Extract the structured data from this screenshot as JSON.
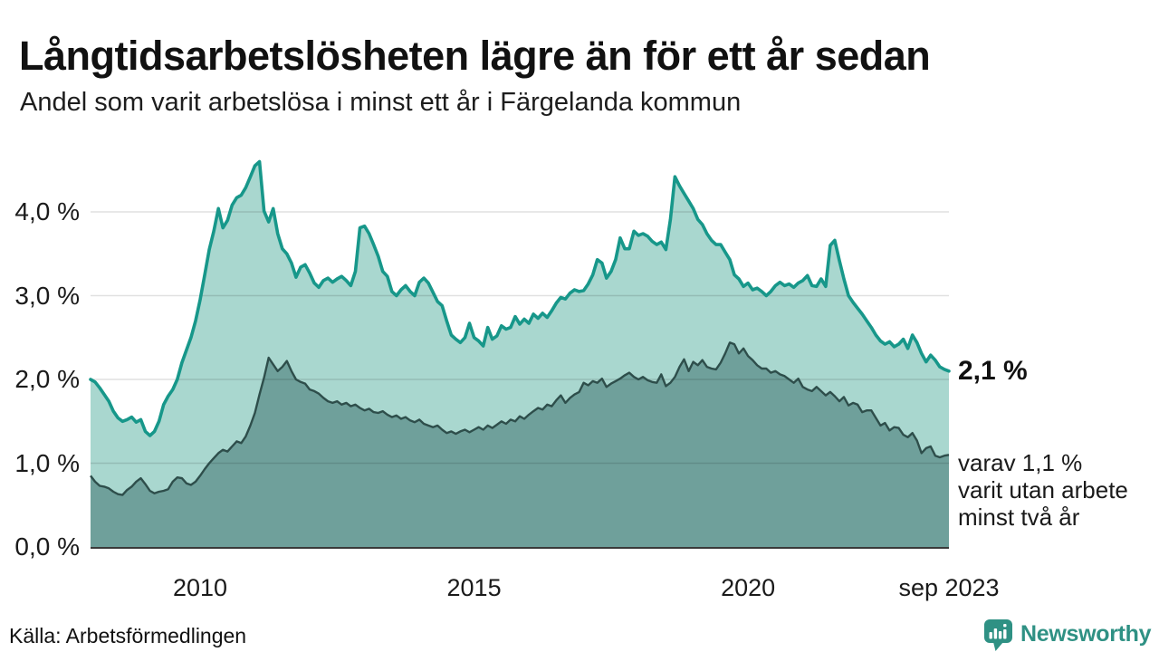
{
  "chart_data": {
    "type": "area",
    "title": "Långtidsarbetslösheten lägre än för ett år sedan",
    "subtitle": "Andel som varit arbetslösa i minst ett år i Färgelanda kommun",
    "unit": "%",
    "frequency": "monthly",
    "x_start_month": "2008-01",
    "x_end_month": "2023-09",
    "grid": "horizontal",
    "legend_position": "none",
    "ylim": [
      0,
      4.8
    ],
    "y_ticks": [
      {
        "label": "0,0 %",
        "value": 0
      },
      {
        "label": "1,0 %",
        "value": 1
      },
      {
        "label": "2,0 %",
        "value": 2
      },
      {
        "label": "3,0 %",
        "value": 3
      },
      {
        "label": "4,0 %",
        "value": 4
      }
    ],
    "x_ticks": [
      {
        "label": "2010",
        "month_index": 24
      },
      {
        "label": "2015",
        "month_index": 84
      },
      {
        "label": "2020",
        "month_index": 144
      },
      {
        "label": "sep 2023",
        "month_index": 188
      }
    ],
    "series": [
      {
        "name": "Andel arbetslösa minst ett år",
        "line_color": "#17978a",
        "fill_color": "#a9d7cf",
        "values": [
          2.0,
          1.97,
          1.9,
          1.82,
          1.74,
          1.62,
          1.54,
          1.5,
          1.52,
          1.55,
          1.49,
          1.52,
          1.38,
          1.33,
          1.38,
          1.5,
          1.7,
          1.8,
          1.88,
          2.0,
          2.2,
          2.35,
          2.5,
          2.7,
          2.95,
          3.25,
          3.55,
          3.77,
          4.04,
          3.81,
          3.9,
          4.08,
          4.17,
          4.2,
          4.29,
          4.42,
          4.55,
          4.6,
          4.01,
          3.88,
          4.04,
          3.74,
          3.56,
          3.5,
          3.39,
          3.22,
          3.34,
          3.37,
          3.27,
          3.15,
          3.1,
          3.18,
          3.21,
          3.16,
          3.2,
          3.23,
          3.18,
          3.12,
          3.29,
          3.81,
          3.83,
          3.74,
          3.61,
          3.47,
          3.29,
          3.23,
          3.05,
          3.0,
          3.07,
          3.12,
          3.05,
          3.0,
          3.16,
          3.21,
          3.15,
          3.04,
          2.93,
          2.88,
          2.7,
          2.53,
          2.48,
          2.44,
          2.5,
          2.67,
          2.5,
          2.46,
          2.4,
          2.62,
          2.48,
          2.52,
          2.64,
          2.6,
          2.62,
          2.75,
          2.66,
          2.72,
          2.67,
          2.78,
          2.73,
          2.79,
          2.74,
          2.82,
          2.91,
          2.98,
          2.96,
          3.03,
          3.07,
          3.05,
          3.06,
          3.14,
          3.25,
          3.43,
          3.39,
          3.21,
          3.29,
          3.43,
          3.69,
          3.56,
          3.56,
          3.77,
          3.72,
          3.74,
          3.71,
          3.65,
          3.61,
          3.64,
          3.55,
          3.91,
          4.42,
          4.31,
          4.22,
          4.13,
          4.04,
          3.91,
          3.85,
          3.74,
          3.66,
          3.61,
          3.61,
          3.52,
          3.43,
          3.25,
          3.2,
          3.11,
          3.15,
          3.07,
          3.09,
          3.05,
          3.0,
          3.05,
          3.12,
          3.16,
          3.12,
          3.14,
          3.1,
          3.15,
          3.18,
          3.24,
          3.12,
          3.11,
          3.2,
          3.11,
          3.6,
          3.66,
          3.42,
          3.2,
          3.0,
          2.92,
          2.85,
          2.78,
          2.7,
          2.62,
          2.53,
          2.46,
          2.42,
          2.45,
          2.39,
          2.42,
          2.48,
          2.37,
          2.53,
          2.44,
          2.31,
          2.21,
          2.29,
          2.23,
          2.15,
          2.12,
          2.1
        ]
      },
      {
        "name": "Andel arbetslösa minst två år",
        "line_color": "#2e4e4b",
        "fill_color": "#6fa09b",
        "values": [
          0.85,
          0.78,
          0.73,
          0.72,
          0.7,
          0.66,
          0.63,
          0.62,
          0.68,
          0.72,
          0.78,
          0.82,
          0.75,
          0.67,
          0.64,
          0.66,
          0.67,
          0.69,
          0.78,
          0.83,
          0.82,
          0.76,
          0.74,
          0.78,
          0.85,
          0.93,
          1.0,
          1.06,
          1.12,
          1.16,
          1.14,
          1.2,
          1.26,
          1.24,
          1.32,
          1.45,
          1.6,
          1.82,
          2.02,
          2.26,
          2.18,
          2.1,
          2.15,
          2.22,
          2.1,
          2.0,
          1.97,
          1.95,
          1.88,
          1.86,
          1.83,
          1.78,
          1.74,
          1.72,
          1.74,
          1.7,
          1.72,
          1.68,
          1.7,
          1.66,
          1.63,
          1.65,
          1.61,
          1.6,
          1.62,
          1.58,
          1.55,
          1.57,
          1.53,
          1.55,
          1.51,
          1.49,
          1.52,
          1.47,
          1.45,
          1.43,
          1.45,
          1.4,
          1.36,
          1.38,
          1.35,
          1.38,
          1.4,
          1.37,
          1.4,
          1.43,
          1.4,
          1.45,
          1.42,
          1.46,
          1.5,
          1.47,
          1.52,
          1.5,
          1.56,
          1.53,
          1.58,
          1.62,
          1.66,
          1.64,
          1.7,
          1.68,
          1.75,
          1.81,
          1.72,
          1.78,
          1.82,
          1.85,
          1.96,
          1.93,
          1.98,
          1.96,
          2.01,
          1.91,
          1.95,
          1.98,
          2.01,
          2.05,
          2.08,
          2.03,
          2.0,
          2.03,
          1.99,
          1.97,
          1.96,
          2.06,
          1.92,
          1.96,
          2.03,
          2.15,
          2.24,
          2.1,
          2.21,
          2.17,
          2.23,
          2.15,
          2.13,
          2.12,
          2.2,
          2.31,
          2.44,
          2.42,
          2.31,
          2.37,
          2.28,
          2.23,
          2.17,
          2.13,
          2.13,
          2.08,
          2.1,
          2.06,
          2.04,
          2.0,
          1.96,
          2.01,
          1.91,
          1.88,
          1.86,
          1.91,
          1.86,
          1.81,
          1.85,
          1.8,
          1.74,
          1.79,
          1.69,
          1.72,
          1.7,
          1.61,
          1.63,
          1.63,
          1.54,
          1.45,
          1.48,
          1.39,
          1.43,
          1.42,
          1.34,
          1.31,
          1.36,
          1.27,
          1.12,
          1.18,
          1.2,
          1.09,
          1.07,
          1.09,
          1.1
        ]
      }
    ],
    "annotations": [
      {
        "text": "2,1 %",
        "bold": true,
        "attached_to": "Andel arbetslösa minst ett år"
      },
      {
        "text": "varav 1,1 %\nvarit utan arbete\nminst två år",
        "bold": false,
        "attached_to": "Andel arbetslösa minst två år"
      }
    ]
  },
  "colors": {
    "accent_teal": "#17978a",
    "light_fill": "#a9d7cf",
    "dark_fill": "#6fa09b",
    "dark_line": "#2e4e4b",
    "gridline": "#e0e0e0",
    "baseline": "#3a3a3a",
    "brand_teal": "#2f9184"
  },
  "footer": {
    "source": "Källa: Arbetsförmedlingen",
    "brand": "Newsworthy",
    "brand_icon": "newsworthy-speech-bubble-bar-chart-icon"
  }
}
